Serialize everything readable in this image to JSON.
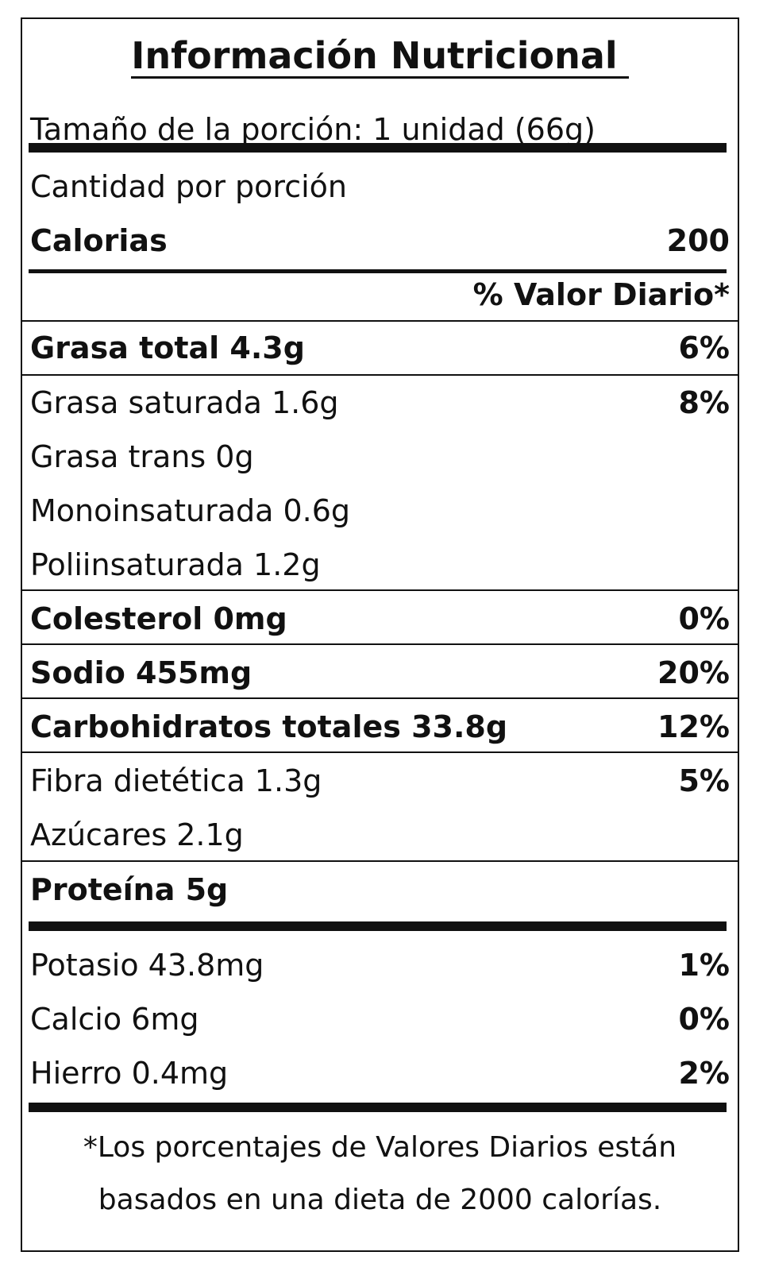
{
  "title": "Información Nutricional",
  "serving_size": "Tamaño de la porción: 1 unidad (66g)",
  "amount_per_serving": "Cantidad por porción",
  "calories_label": "Calorias",
  "calories_value": "200",
  "daily_value_header": "% Valor Diario*",
  "nutrients": [
    {
      "label": "Grasa total 4.3g",
      "pct": "6%"
    },
    {
      "label": "Grasa saturada 1.6g",
      "pct": "8%"
    },
    {
      "label": "Grasa trans 0g",
      "pct": ""
    },
    {
      "label": "Monoinsaturada 0.6g",
      "pct": ""
    },
    {
      "label": "Poliinsaturada 1.2g",
      "pct": ""
    },
    {
      "label": "Colesterol 0mg",
      "pct": "0%"
    },
    {
      "label": "Sodio 455mg",
      "pct": "20%"
    },
    {
      "label": "Carbohidratos totales 33.8g",
      "pct": "12%"
    },
    {
      "label": "Fibra dietética 1.3g",
      "pct": "5%"
    },
    {
      "label": "Azúcares 2.1g",
      "pct": ""
    },
    {
      "label": "Proteína 5g",
      "pct": ""
    }
  ],
  "minerals": [
    {
      "label": "Potasio 43.8mg",
      "pct": "1%"
    },
    {
      "label": "Calcio 6mg",
      "pct": "0%"
    },
    {
      "label": "Hierro 0.4mg",
      "pct": "2%"
    }
  ],
  "footnote": {
    "line1": "*Los porcentajes de Valores Diarios están",
    "line2": "basados en una dieta de 2000 calorías."
  }
}
